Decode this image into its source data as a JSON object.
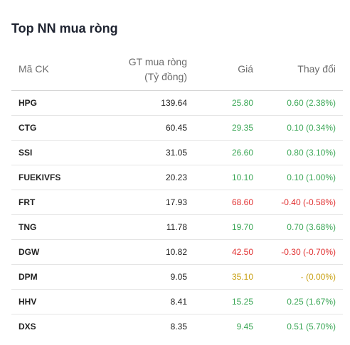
{
  "widget": {
    "title": "Top NN mua ròng",
    "columns": {
      "code": "Mã CK",
      "value_line1": "GT mua ròng",
      "value_line2": "(Tỷ đồng)",
      "price": "Giá",
      "change": "Thay đổi"
    },
    "colors": {
      "up": "#3aa655",
      "down": "#e02e2e",
      "reference": "#c8a012"
    },
    "rows": [
      {
        "code": "HPG",
        "value": "139.64",
        "price": "25.80",
        "change": "0.60 (2.38%)",
        "trend": "up"
      },
      {
        "code": "CTG",
        "value": "60.45",
        "price": "29.35",
        "change": "0.10 (0.34%)",
        "trend": "up"
      },
      {
        "code": "SSI",
        "value": "31.05",
        "price": "26.60",
        "change": "0.80 (3.10%)",
        "trend": "up"
      },
      {
        "code": "FUEKIVFS",
        "value": "20.23",
        "price": "10.10",
        "change": "0.10 (1.00%)",
        "trend": "up"
      },
      {
        "code": "FRT",
        "value": "17.93",
        "price": "68.60",
        "change": "-0.40 (-0.58%)",
        "trend": "down"
      },
      {
        "code": "TNG",
        "value": "11.78",
        "price": "19.70",
        "change": "0.70 (3.68%)",
        "trend": "up"
      },
      {
        "code": "DGW",
        "value": "10.82",
        "price": "42.50",
        "change": "-0.30 (-0.70%)",
        "trend": "down"
      },
      {
        "code": "DPM",
        "value": "9.05",
        "price": "35.10",
        "change": "- (0.00%)",
        "trend": "flat"
      },
      {
        "code": "HHV",
        "value": "8.41",
        "price": "15.25",
        "change": "0.25 (1.67%)",
        "trend": "up"
      },
      {
        "code": "DXS",
        "value": "8.35",
        "price": "9.45",
        "change": "0.51 (5.70%)",
        "trend": "up"
      }
    ]
  }
}
